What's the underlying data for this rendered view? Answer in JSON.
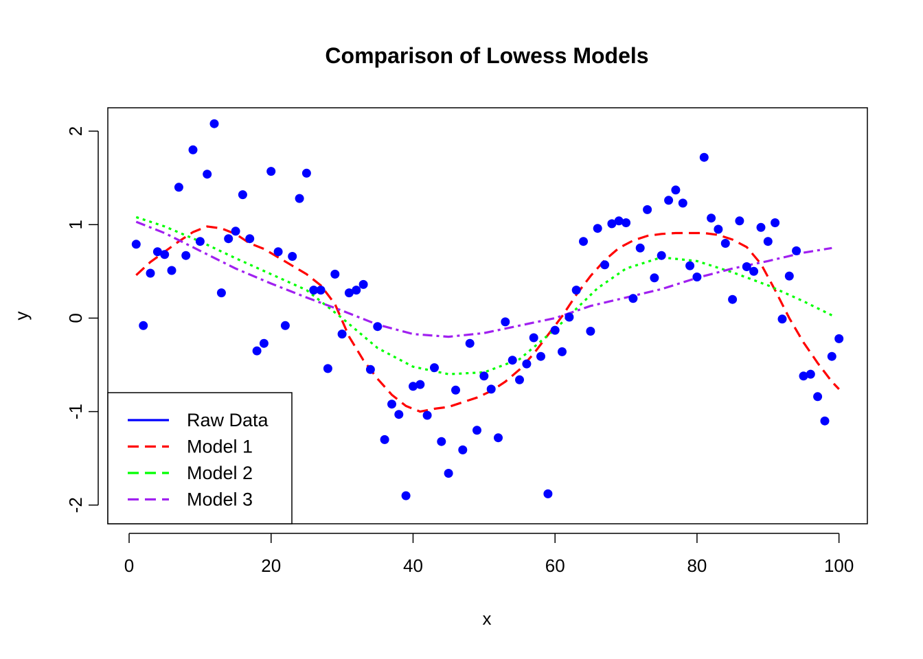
{
  "chart_data": {
    "type": "scatter",
    "title": "Comparison of Lowess Models",
    "xlabel": "x",
    "ylabel": "y",
    "xlim": [
      -3,
      104
    ],
    "ylim": [
      -2.2,
      2.25
    ],
    "x_ticks": [
      0,
      20,
      40,
      60,
      80,
      100
    ],
    "y_ticks": [
      -2,
      -1,
      0,
      1,
      2
    ],
    "grid": false,
    "legend_position": "bottom-left",
    "points": {
      "name": "Raw Data",
      "color": "#0000ff",
      "x": [
        1,
        2,
        3,
        4,
        5,
        6,
        7,
        8,
        9,
        10,
        11,
        12,
        13,
        14,
        15,
        16,
        17,
        18,
        19,
        20,
        21,
        22,
        23,
        24,
        25,
        26,
        27,
        28,
        29,
        30,
        31,
        32,
        33,
        34,
        35,
        36,
        37,
        38,
        39,
        40,
        41,
        42,
        43,
        44,
        45,
        46,
        47,
        48,
        49,
        50,
        51,
        52,
        53,
        54,
        55,
        56,
        57,
        58,
        59,
        60,
        61,
        62,
        63,
        64,
        65,
        66,
        67,
        68,
        69,
        70,
        71,
        72,
        73,
        74,
        75,
        76,
        77,
        78,
        79,
        80,
        81,
        82,
        83,
        84,
        85,
        86,
        87,
        88,
        89,
        90,
        91,
        92,
        93,
        94,
        95,
        96,
        97,
        98,
        99,
        100
      ],
      "y": [
        0.79,
        -0.08,
        0.48,
        0.71,
        0.68,
        0.51,
        1.4,
        0.67,
        1.8,
        0.82,
        1.54,
        2.08,
        0.27,
        0.85,
        0.93,
        1.32,
        0.85,
        -0.35,
        -0.27,
        1.57,
        0.71,
        -0.08,
        0.66,
        1.28,
        1.55,
        0.3,
        0.3,
        -0.54,
        0.47,
        -0.17,
        0.27,
        0.3,
        0.36,
        -0.55,
        -0.09,
        -1.3,
        -0.92,
        -1.03,
        -1.9,
        -0.73,
        -0.71,
        -1.04,
        -0.53,
        -1.32,
        -1.66,
        -0.77,
        -1.41,
        -0.27,
        -1.2,
        -0.62,
        -0.76,
        -1.28,
        -0.04,
        -0.45,
        -0.66,
        -0.49,
        -0.21,
        -0.41,
        -1.88,
        -0.13,
        -0.36,
        0.01,
        0.3,
        0.82,
        -0.14,
        0.96,
        0.57,
        1.01,
        1.04,
        1.02,
        0.21,
        0.75,
        1.16,
        0.43,
        0.67,
        1.26,
        1.37,
        1.23,
        0.56,
        0.44,
        1.72,
        1.07,
        0.95,
        0.8,
        0.2,
        1.04,
        0.55,
        0.5,
        0.97,
        0.82,
        1.02,
        -0.01,
        0.45,
        0.72,
        -0.62,
        -0.6,
        -0.84,
        -1.1,
        -0.41,
        -0.22
      ]
    },
    "series": [
      {
        "name": "Model 1",
        "color": "#ff0000",
        "dash": "dashed",
        "x": [
          1,
          3,
          5,
          7,
          9,
          11,
          13,
          15,
          17,
          19,
          21,
          23,
          25,
          27,
          29,
          31,
          33,
          35,
          37,
          39,
          41,
          43,
          45,
          47,
          49,
          51,
          53,
          55,
          57,
          59,
          61,
          63,
          65,
          67,
          69,
          71,
          73,
          75,
          77,
          79,
          81,
          83,
          85,
          87,
          89,
          91,
          93,
          95,
          97,
          99,
          100
        ],
        "y": [
          0.46,
          0.6,
          0.71,
          0.82,
          0.92,
          0.98,
          0.96,
          0.9,
          0.8,
          0.74,
          0.65,
          0.56,
          0.47,
          0.35,
          0.15,
          -0.2,
          -0.45,
          -0.65,
          -0.82,
          -0.94,
          -1.0,
          -0.97,
          -0.95,
          -0.9,
          -0.85,
          -0.78,
          -0.68,
          -0.55,
          -0.38,
          -0.18,
          0.02,
          0.25,
          0.45,
          0.62,
          0.75,
          0.83,
          0.88,
          0.9,
          0.91,
          0.91,
          0.91,
          0.89,
          0.84,
          0.76,
          0.58,
          0.3,
          0.0,
          -0.26,
          -0.48,
          -0.68,
          -0.76
        ]
      },
      {
        "name": "Model 2",
        "color": "#00ff00",
        "dash": "dotted",
        "x": [
          1,
          5,
          10,
          15,
          20,
          25,
          30,
          35,
          40,
          45,
          50,
          55,
          60,
          63,
          66,
          70,
          75,
          80,
          85,
          90,
          95,
          99
        ],
        "y": [
          1.08,
          0.98,
          0.82,
          0.64,
          0.47,
          0.3,
          0.0,
          -0.32,
          -0.52,
          -0.6,
          -0.58,
          -0.44,
          -0.12,
          0.1,
          0.32,
          0.53,
          0.65,
          0.61,
          0.49,
          0.35,
          0.18,
          0.03
        ]
      },
      {
        "name": "Model 3",
        "color": "#a020f0",
        "dash": "dashdot",
        "x": [
          1,
          5,
          10,
          15,
          20,
          25,
          30,
          35,
          40,
          45,
          50,
          55,
          60,
          65,
          70,
          75,
          80,
          85,
          90,
          95,
          99
        ],
        "y": [
          1.03,
          0.91,
          0.72,
          0.53,
          0.37,
          0.22,
          0.08,
          -0.07,
          -0.17,
          -0.2,
          -0.16,
          -0.08,
          0.0,
          0.13,
          0.22,
          0.31,
          0.43,
          0.53,
          0.61,
          0.7,
          0.75
        ]
      }
    ],
    "legend": [
      {
        "label": "Raw Data",
        "color": "#0000ff"
      },
      {
        "label": "Model 1",
        "color": "#ff0000"
      },
      {
        "label": "Model 2",
        "color": "#00ff00"
      },
      {
        "label": "Model 3",
        "color": "#a020f0"
      }
    ]
  }
}
